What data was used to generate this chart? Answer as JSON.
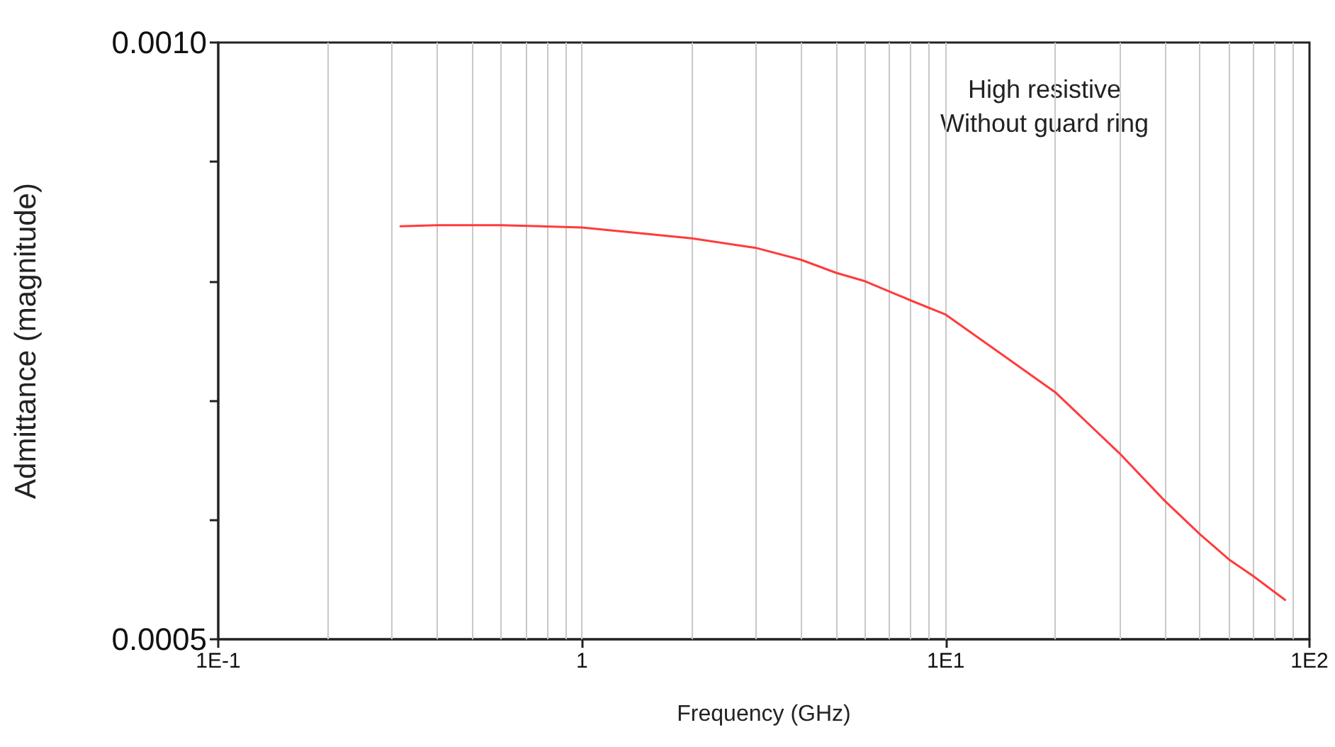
{
  "chart_data": {
    "type": "line",
    "xlabel": "Frequency (GHz)",
    "ylabel": "Admittance (magnitude)",
    "annotations": [
      "High resistive",
      "Without guard ring"
    ],
    "log": "x",
    "grid": "x",
    "marker": "none",
    "line_style": "solid",
    "xlim": [
      0.1,
      100
    ],
    "xticks": [
      {
        "value": 0.1,
        "label": "1E-1"
      },
      {
        "value": 0.2,
        "label": null
      },
      {
        "value": 0.3,
        "label": null
      },
      {
        "value": 0.4,
        "label": null
      },
      {
        "value": 0.5,
        "label": null
      },
      {
        "value": 0.6,
        "label": null
      },
      {
        "value": 0.7,
        "label": null
      },
      {
        "value": 0.8,
        "label": null
      },
      {
        "value": 0.9,
        "label": null
      },
      1,
      {
        "value": 2,
        "label": null
      },
      {
        "value": 3,
        "label": null
      },
      {
        "value": 4,
        "label": null
      },
      {
        "value": 5,
        "label": null
      },
      {
        "value": 6,
        "label": null
      },
      {
        "value": 7,
        "label": null
      },
      {
        "value": 8,
        "label": null
      },
      {
        "value": 9,
        "label": null
      },
      {
        "value": 10,
        "label": "1E1"
      },
      {
        "value": 20,
        "label": null
      },
      {
        "value": 30,
        "label": null
      },
      {
        "value": 40,
        "label": null
      },
      {
        "value": 50,
        "label": null
      },
      {
        "value": 60,
        "label": null
      },
      {
        "value": 70,
        "label": null
      },
      {
        "value": 80,
        "label": null
      },
      {
        "value": 90,
        "label": null
      },
      {
        "value": 100,
        "label": "1E2"
      }
    ],
    "ylim": [
      0.0005,
      0.001
    ],
    "yticks": [
      {
        "value": 0.0005,
        "label": "0.0005"
      },
      {
        "value": 0.0006,
        "label": null
      },
      {
        "value": 0.0007,
        "label": null
      },
      {
        "value": 0.0008,
        "label": null
      },
      {
        "value": 0.0009,
        "label": null
      },
      {
        "value": 0.001,
        "label": "0.0010"
      }
    ],
    "series": [
      {
        "color": "#ff3b3b",
        "x": [
          0.317,
          0.4,
          0.6,
          1,
          2,
          3,
          4,
          5,
          6,
          8,
          10,
          20,
          30,
          40,
          50,
          60,
          70,
          85.7
        ],
        "values": [
          0.000846,
          0.000847,
          0.000847,
          0.000845,
          0.000836,
          0.000828,
          0.000818,
          0.000807,
          0.0008,
          0.000784,
          0.000772,
          0.000707,
          0.000656,
          0.000616,
          0.000588,
          0.000567,
          0.000553,
          0.000533
        ]
      }
    ]
  }
}
